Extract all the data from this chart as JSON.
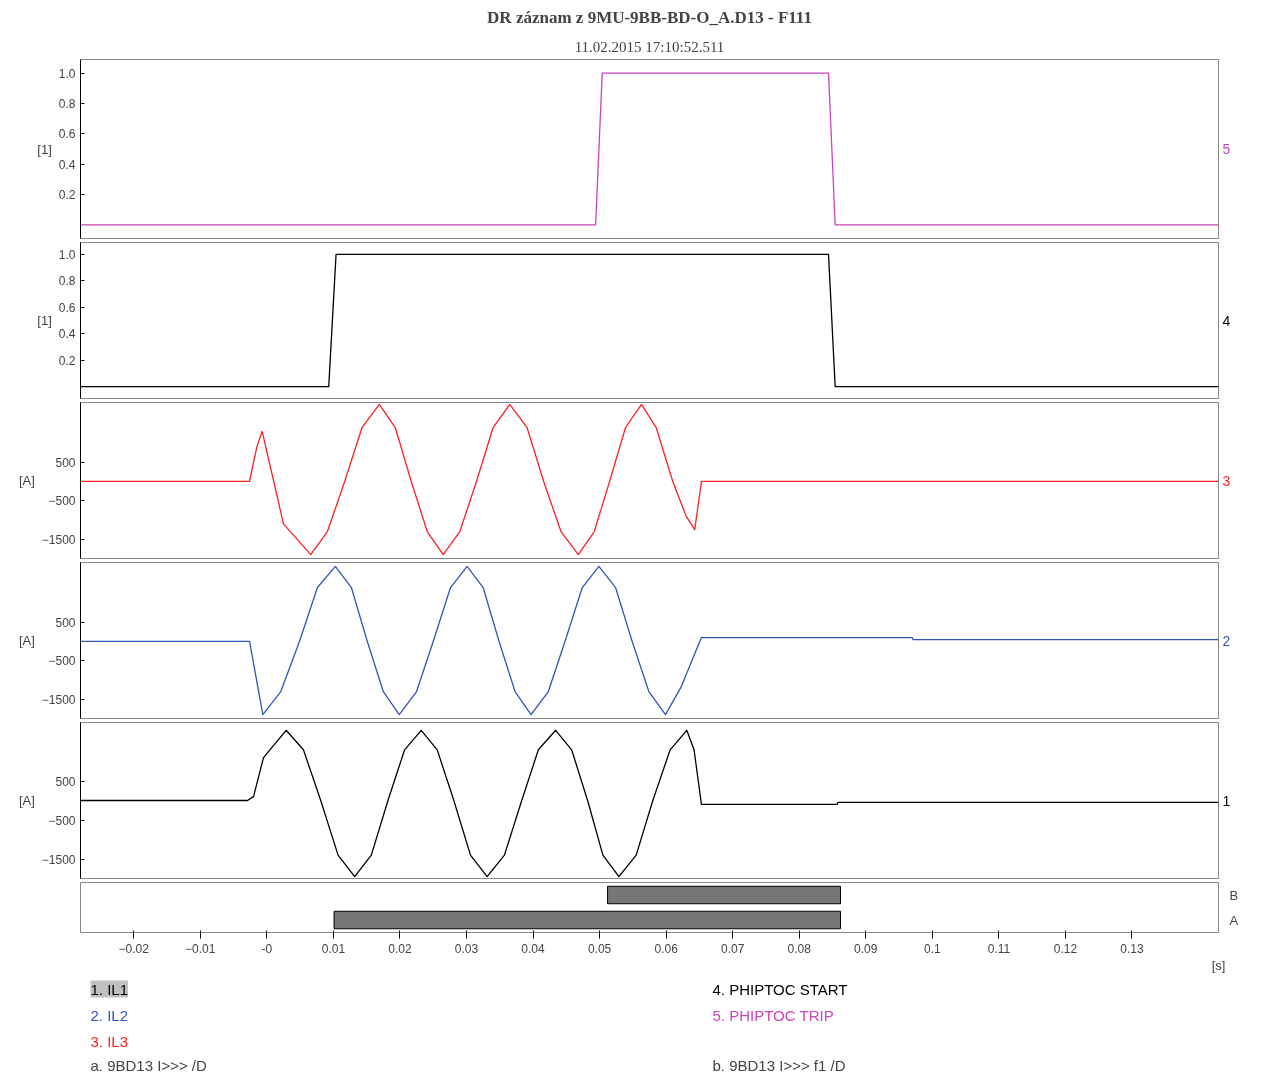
{
  "chart_data": [
    {
      "type": "line",
      "title": "DR záznam z 9MU-9BB-BD-O_A.D13 - F111",
      "subtitle": "11.02.2015 17:10:52.511",
      "ylabel": "[1]",
      "xlim": [
        -0.028,
        0.143
      ],
      "ylim": [
        -0.09,
        1.09
      ],
      "yticks": [
        0.2,
        0.4,
        0.6,
        0.8,
        {
          "value": 1,
          "label": "1.0"
        }
      ],
      "tick_labels": "y",
      "grid": false,
      "legend": "bottom",
      "annotations": [
        "5"
      ],
      "series": [
        {
          "name": "5. PHIPTOC TRIP",
          "color": "#cc44bb",
          "x": [
            -0.028,
            0.0494,
            0.0504,
            0.0844,
            0.0854,
            0.143
          ],
          "values": [
            0,
            0,
            1,
            1,
            0,
            0
          ]
        }
      ]
    },
    {
      "type": "line",
      "ylabel": "[1]",
      "xlim": [
        -0.028,
        0.143
      ],
      "ylim": [
        -0.09,
        1.09
      ],
      "yticks": [
        0.2,
        0.4,
        0.6,
        0.8,
        {
          "value": 1,
          "label": "1.0"
        }
      ],
      "tick_labels": "y",
      "grid": false,
      "legend": "bottom",
      "annotations": [
        "4"
      ],
      "series": [
        {
          "name": "4. PHIPTOC START",
          "color": "#000000",
          "x": [
            -0.028,
            0.0093,
            0.0104,
            0.0844,
            0.0854,
            0.143
          ],
          "values": [
            0,
            0,
            1,
            1,
            0,
            0
          ]
        }
      ]
    },
    {
      "type": "line",
      "ylabel": "[A]",
      "xlim": [
        -0.028,
        0.143
      ],
      "ylim": [
        -2000,
        2050
      ],
      "yticks": [
        -1500,
        -500,
        500
      ],
      "tick_labels": "y",
      "grid": false,
      "legend": "bottom",
      "annotations": [
        "3"
      ],
      "series": [
        {
          "name": "3. IL3",
          "color": "#ff2020",
          "x": [
            -0.028,
            -0.0026,
            -0.0015,
            -0.0007,
            0.0025,
            0.0066,
            0.0091,
            0.0117,
            0.0143,
            0.0169,
            0.0193,
            0.0217,
            0.0241,
            0.0265,
            0.029,
            0.0315,
            0.034,
            0.0365,
            0.0391,
            0.0416,
            0.0442,
            0.0468,
            0.0492,
            0.0515,
            0.0539,
            0.0563,
            0.0585,
            0.061,
            0.063,
            0.0643,
            0.0653,
            0.143
          ],
          "values": [
            0,
            0,
            900,
            1300,
            -1100,
            -1900,
            -1300,
            0,
            1400,
            2000,
            1400,
            0,
            -1300,
            -1900,
            -1300,
            0,
            1400,
            2000,
            1400,
            0,
            -1300,
            -1900,
            -1300,
            0,
            1400,
            2000,
            1400,
            0,
            -900,
            -1250,
            0,
            0
          ]
        }
      ]
    },
    {
      "type": "line",
      "ylabel": "[A]",
      "xlim": [
        -0.028,
        0.143
      ],
      "ylim": [
        -2000,
        2050
      ],
      "yticks": [
        -1500,
        -500,
        500
      ],
      "tick_labels": "y",
      "grid": false,
      "legend": "bottom",
      "annotations": [
        "2"
      ],
      "series": [
        {
          "name": "2. IL2",
          "color": "#3355bb",
          "x": [
            -0.028,
            -0.0026,
            -0.0006,
            0.0021,
            0.0049,
            0.0076,
            0.0103,
            0.0127,
            0.0151,
            0.0175,
            0.0199,
            0.0225,
            0.025,
            0.0276,
            0.0301,
            0.0325,
            0.0349,
            0.0373,
            0.0397,
            0.0423,
            0.0448,
            0.0474,
            0.0499,
            0.0524,
            0.0549,
            0.0574,
            0.0599,
            0.0622,
            0.0653,
            0.072,
            0.0721,
            0.097,
            0.0971,
            0.143
          ],
          "values": [
            0,
            0,
            -1900,
            -1300,
            0,
            1400,
            1950,
            1400,
            0,
            -1300,
            -1900,
            -1300,
            0,
            1400,
            1950,
            1400,
            0,
            -1300,
            -1900,
            -1300,
            0,
            1400,
            1950,
            1400,
            0,
            -1300,
            -1900,
            -1200,
            100,
            100,
            100,
            100,
            50,
            50
          ]
        }
      ]
    },
    {
      "type": "line",
      "ylabel": "[A]",
      "xlim": [
        -0.028,
        0.143
      ],
      "ylim": [
        -2000,
        2000
      ],
      "yticks": [
        -1500,
        -500,
        500
      ],
      "tick_labels": "y",
      "grid": false,
      "legend": "bottom",
      "annotations": [
        "1"
      ],
      "series": [
        {
          "name": "1. IL1",
          "color": "#000000",
          "x": [
            -0.028,
            -0.0029,
            -0.002,
            -0.0005,
            0.0029,
            0.0055,
            0.0081,
            0.0107,
            0.0132,
            0.0157,
            0.0182,
            0.0207,
            0.0232,
            0.0256,
            0.0281,
            0.0306,
            0.0331,
            0.0357,
            0.0383,
            0.0408,
            0.0434,
            0.0458,
            0.0482,
            0.0505,
            0.0529,
            0.0555,
            0.058,
            0.0606,
            0.0631,
            0.0642,
            0.0653,
            0.0857,
            0.0858,
            0.143
          ],
          "values": [
            0,
            0,
            100,
            1100,
            1800,
            1300,
            0,
            -1400,
            -1950,
            -1400,
            0,
            1300,
            1800,
            1300,
            0,
            -1400,
            -1950,
            -1400,
            0,
            1300,
            1800,
            1300,
            0,
            -1400,
            -1950,
            -1400,
            0,
            1300,
            1800,
            1300,
            -100,
            -100,
            -50,
            -50
          ]
        }
      ]
    },
    {
      "type": "bar",
      "orientation": "horizontal",
      "categories": [
        "B",
        "A"
      ],
      "base": [
        0.0512,
        0.0101
      ],
      "values": [
        0.035,
        0.0761
      ],
      "color": "#777777",
      "xlabel": "[s]",
      "xlim": [
        -0.028,
        0.143
      ],
      "xticks": [
        -0.02,
        -0.01,
        {
          "value": 0,
          "label": "-0"
        },
        0.01,
        0.02,
        0.03,
        0.04,
        0.05,
        0.06,
        0.07,
        0.08,
        0.09,
        0.1,
        0.11,
        0.12,
        0.13
      ],
      "tick_labels": "x",
      "grid": false,
      "annotations": [
        "a. 9BD13 I>>> /D",
        "b. 9BD13 I>>> f1 /D"
      ]
    }
  ]
}
